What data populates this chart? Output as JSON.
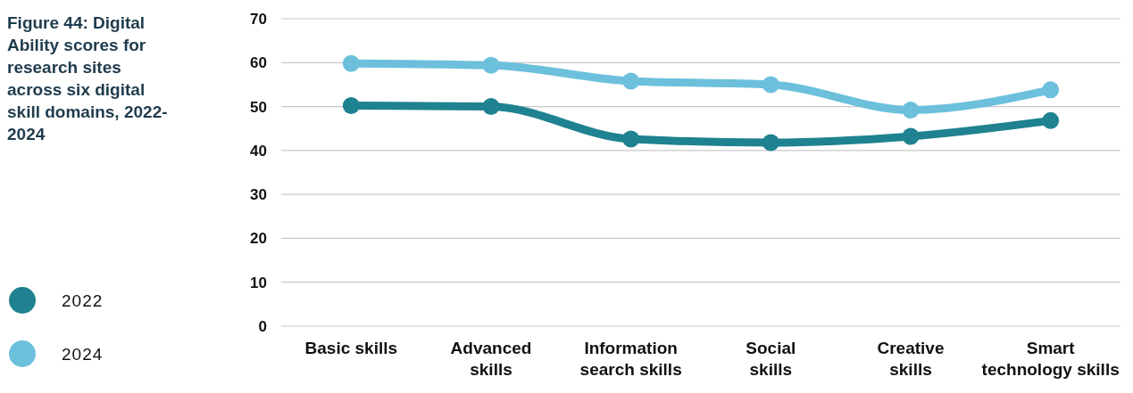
{
  "chart_data": {
    "type": "line",
    "title": "Figure 44: Digital Ability scores for research sites across six digital skill domains, 2022-2024",
    "categories": [
      "Basic skills",
      "Advanced skills",
      "Information search skills",
      "Social skills",
      "Creative skills",
      "Smart technology skills"
    ],
    "series": [
      {
        "name": "2022",
        "color": "#1f8290",
        "values": [
          50.2,
          50,
          42.6,
          41.8,
          43.2,
          46.8
        ]
      },
      {
        "name": "2024",
        "color": "#6cc0dc",
        "values": [
          59.8,
          59.4,
          55.8,
          55,
          49.2,
          53.8
        ]
      }
    ],
    "ylim": [
      0,
      70
    ],
    "yticks": [
      0,
      10,
      20,
      30,
      40,
      50,
      60,
      70
    ],
    "grid": "y",
    "legend": "bottom left",
    "marker": "circle",
    "line_style": "solid"
  }
}
